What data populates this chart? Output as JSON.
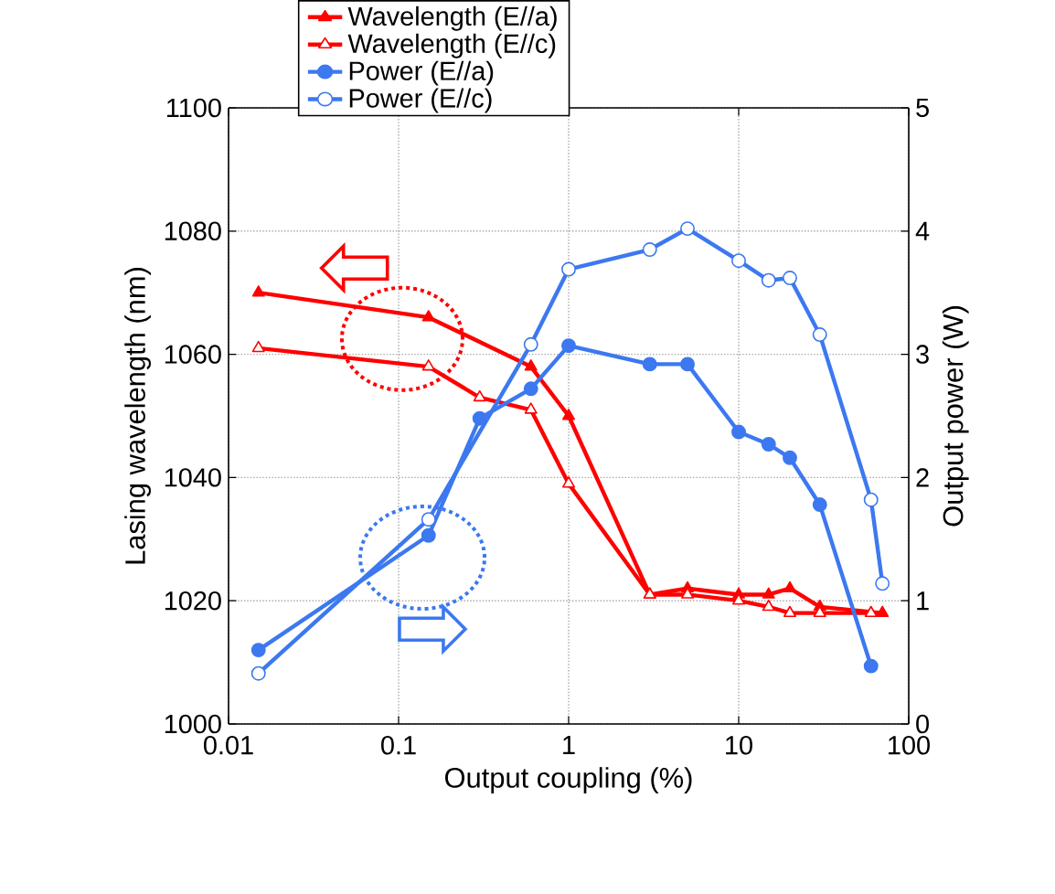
{
  "chart_data": {
    "type": "line",
    "xlabel": "Output coupling (%)",
    "ylabel": "Lasing wavelength (nm)",
    "y2label": "Output power (W)",
    "log": "x",
    "xlim": [
      0.01,
      100
    ],
    "xticks": [
      0.01,
      0.1,
      1,
      10,
      100
    ],
    "ylim": [
      1000,
      1100
    ],
    "yticks": [
      1000,
      1020,
      1040,
      1060,
      1080,
      1100
    ],
    "y2lim": [
      0,
      5
    ],
    "y2ticks": [
      0,
      1,
      2,
      3,
      4,
      5
    ],
    "grid": true,
    "legend": "top",
    "series": [
      {
        "name": "Wavelength (E//a)",
        "color": "#ff0000",
        "marker": "triangle",
        "x": [
          0.015,
          0.15,
          0.6,
          1,
          3,
          5,
          10,
          15,
          20,
          30,
          70
        ],
        "values": [
          1070,
          1066,
          1058,
          1050,
          1021,
          1022,
          1021,
          1021,
          1022,
          1019,
          1018
        ]
      },
      {
        "name": "Wavelength (E//c)",
        "color": "#ff0000",
        "marker": "triangle",
        "x": [
          0.015,
          0.15,
          0.3,
          0.6,
          1,
          3,
          5,
          10,
          15,
          20,
          30,
          60
        ],
        "values": [
          1061,
          1058,
          1053,
          1051,
          1039,
          1021,
          1021,
          1020,
          1019,
          1018,
          1018,
          1018
        ]
      },
      {
        "name": "Power (E//a)",
        "color": "#3c78f0",
        "marker": "circle",
        "axis": "y2",
        "x": [
          0.015,
          0.15,
          0.3,
          0.6,
          1,
          3,
          5,
          10,
          15,
          20,
          30,
          60
        ],
        "values": [
          0.6,
          1.53,
          2.48,
          2.72,
          3.07,
          2.92,
          2.92,
          2.37,
          2.27,
          2.16,
          1.78,
          0.47
        ]
      },
      {
        "name": "Power (E//c)",
        "color": "#3c78f0",
        "marker": "circle",
        "axis": "y2",
        "x": [
          0.015,
          0.15,
          0.6,
          1,
          3,
          5,
          10,
          15,
          20,
          30,
          60,
          70
        ],
        "values": [
          0.41,
          1.66,
          3.08,
          3.69,
          3.85,
          4.02,
          3.76,
          3.6,
          3.62,
          3.16,
          1.82,
          1.14
        ]
      }
    ]
  }
}
